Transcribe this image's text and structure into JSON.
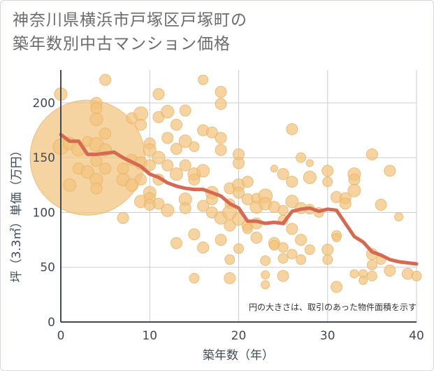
{
  "title_lines": [
    "神奈川県横浜市戸塚区戸塚町の",
    "築年数別中古マンション価格"
  ],
  "chart_data": {
    "type": "scatter",
    "xlabel": "築年数（年）",
    "ylabel": "坪（3.3㎡）単価（万円）",
    "xlim": [
      0,
      40
    ],
    "ylim": [
      0,
      230
    ],
    "xticks": [
      0,
      10,
      20,
      30,
      40
    ],
    "yticks": [
      0,
      50,
      100,
      150,
      200
    ],
    "grid": true,
    "annotation": "円の大きさは、取引のあった物件面積を示す",
    "colors": {
      "bubble": "#f3c47d",
      "bubble_stroke": "#e8b266",
      "line": "#d46a52",
      "grid": "#c9ced4"
    },
    "trend_line": [
      [
        0,
        171
      ],
      [
        1,
        165
      ],
      [
        2,
        165
      ],
      [
        3,
        153
      ],
      [
        4,
        153
      ],
      [
        5,
        154
      ],
      [
        6,
        155
      ],
      [
        7,
        150
      ],
      [
        8,
        146
      ],
      [
        9,
        142
      ],
      [
        10,
        135
      ],
      [
        11,
        132
      ],
      [
        12,
        127
      ],
      [
        13,
        124
      ],
      [
        14,
        122
      ],
      [
        15,
        121
      ],
      [
        16,
        121
      ],
      [
        17,
        118
      ],
      [
        18,
        115
      ],
      [
        19,
        108
      ],
      [
        20,
        104
      ],
      [
        21,
        92
      ],
      [
        22,
        92
      ],
      [
        23,
        90
      ],
      [
        24,
        91
      ],
      [
        25,
        90
      ],
      [
        26,
        101
      ],
      [
        27,
        103
      ],
      [
        28,
        104
      ],
      [
        29,
        101
      ],
      [
        30,
        103
      ],
      [
        31,
        102
      ],
      [
        32,
        90
      ],
      [
        33,
        78
      ],
      [
        34,
        73
      ],
      [
        35,
        64
      ],
      [
        36,
        61
      ],
      [
        37,
        57
      ],
      [
        38,
        55
      ],
      [
        39,
        54
      ],
      [
        40,
        53
      ]
    ],
    "points": [
      {
        "x": 3,
        "y": 150,
        "s": 82
      },
      {
        "x": 0,
        "y": 208,
        "s": 9
      },
      {
        "x": 0,
        "y": 160,
        "s": 11
      },
      {
        "x": 1,
        "y": 163,
        "s": 9
      },
      {
        "x": 1,
        "y": 125,
        "s": 9
      },
      {
        "x": 2,
        "y": 140,
        "s": 8
      },
      {
        "x": 2,
        "y": 158,
        "s": 10
      },
      {
        "x": 3,
        "y": 137,
        "s": 9
      },
      {
        "x": 3,
        "y": 165,
        "s": 7
      },
      {
        "x": 4,
        "y": 200,
        "s": 8
      },
      {
        "x": 4,
        "y": 195,
        "s": 8
      },
      {
        "x": 4,
        "y": 185,
        "s": 9
      },
      {
        "x": 4,
        "y": 162,
        "s": 10
      },
      {
        "x": 4,
        "y": 147,
        "s": 8
      },
      {
        "x": 4,
        "y": 130,
        "s": 9
      },
      {
        "x": 4,
        "y": 122,
        "s": 8
      },
      {
        "x": 5,
        "y": 221,
        "s": 8
      },
      {
        "x": 5,
        "y": 172,
        "s": 8
      },
      {
        "x": 5,
        "y": 157,
        "s": 9
      },
      {
        "x": 5,
        "y": 140,
        "s": 8
      },
      {
        "x": 7,
        "y": 95,
        "s": 8
      },
      {
        "x": 7,
        "y": 130,
        "s": 9
      },
      {
        "x": 7,
        "y": 140,
        "s": 8
      },
      {
        "x": 8,
        "y": 186,
        "s": 8
      },
      {
        "x": 8,
        "y": 148,
        "s": 8
      },
      {
        "x": 8,
        "y": 125,
        "s": 9
      },
      {
        "x": 9,
        "y": 190,
        "s": 10
      },
      {
        "x": 9,
        "y": 180,
        "s": 8
      },
      {
        "x": 9,
        "y": 145,
        "s": 9
      },
      {
        "x": 9,
        "y": 130,
        "s": 8
      },
      {
        "x": 9,
        "y": 110,
        "s": 9
      },
      {
        "x": 10,
        "y": 163,
        "s": 8
      },
      {
        "x": 10,
        "y": 157,
        "s": 9
      },
      {
        "x": 10,
        "y": 143,
        "s": 8
      },
      {
        "x": 10,
        "y": 118,
        "s": 9
      },
      {
        "x": 10,
        "y": 113,
        "s": 8
      },
      {
        "x": 10,
        "y": 107,
        "s": 8
      },
      {
        "x": 11,
        "y": 208,
        "s": 8
      },
      {
        "x": 11,
        "y": 187,
        "s": 8
      },
      {
        "x": 11,
        "y": 150,
        "s": 9
      },
      {
        "x": 11,
        "y": 130,
        "s": 8
      },
      {
        "x": 11,
        "y": 108,
        "s": 8
      },
      {
        "x": 12,
        "y": 192,
        "s": 9
      },
      {
        "x": 12,
        "y": 168,
        "s": 8
      },
      {
        "x": 12,
        "y": 143,
        "s": 8
      },
      {
        "x": 12,
        "y": 102,
        "s": 9
      },
      {
        "x": 13,
        "y": 180,
        "s": 8
      },
      {
        "x": 13,
        "y": 158,
        "s": 8
      },
      {
        "x": 13,
        "y": 135,
        "s": 9
      },
      {
        "x": 13,
        "y": 72,
        "s": 8
      },
      {
        "x": 14,
        "y": 193,
        "s": 8
      },
      {
        "x": 14,
        "y": 165,
        "s": 9
      },
      {
        "x": 14,
        "y": 143,
        "s": 8
      },
      {
        "x": 14,
        "y": 112,
        "s": 9
      },
      {
        "x": 14,
        "y": 104,
        "s": 8
      },
      {
        "x": 15,
        "y": 160,
        "s": 7
      },
      {
        "x": 15,
        "y": 135,
        "s": 9
      },
      {
        "x": 15,
        "y": 130,
        "s": 8
      },
      {
        "x": 15,
        "y": 80,
        "s": 8
      },
      {
        "x": 15,
        "y": 40,
        "s": 7
      },
      {
        "x": 16,
        "y": 221,
        "s": 7
      },
      {
        "x": 16,
        "y": 175,
        "s": 8
      },
      {
        "x": 16,
        "y": 138,
        "s": 9
      },
      {
        "x": 16,
        "y": 106,
        "s": 8
      },
      {
        "x": 16,
        "y": 68,
        "s": 8
      },
      {
        "x": 17,
        "y": 173,
        "s": 8
      },
      {
        "x": 17,
        "y": 118,
        "s": 9
      },
      {
        "x": 17,
        "y": 112,
        "s": 8
      },
      {
        "x": 17,
        "y": 100,
        "s": 8
      },
      {
        "x": 18,
        "y": 210,
        "s": 8
      },
      {
        "x": 18,
        "y": 199,
        "s": 8
      },
      {
        "x": 18,
        "y": 168,
        "s": 8
      },
      {
        "x": 18,
        "y": 157,
        "s": 8
      },
      {
        "x": 18,
        "y": 95,
        "s": 9
      },
      {
        "x": 18,
        "y": 75,
        "s": 8
      },
      {
        "x": 19,
        "y": 122,
        "s": 8
      },
      {
        "x": 19,
        "y": 108,
        "s": 7
      },
      {
        "x": 19,
        "y": 100,
        "s": 10
      },
      {
        "x": 19,
        "y": 88,
        "s": 8
      },
      {
        "x": 19,
        "y": 57,
        "s": 7
      },
      {
        "x": 19,
        "y": 40,
        "s": 8
      },
      {
        "x": 20,
        "y": 153,
        "s": 8
      },
      {
        "x": 20,
        "y": 145,
        "s": 8
      },
      {
        "x": 20,
        "y": 125,
        "s": 9
      },
      {
        "x": 20,
        "y": 118,
        "s": 8
      },
      {
        "x": 20,
        "y": 94,
        "s": 9
      },
      {
        "x": 20,
        "y": 67,
        "s": 7
      },
      {
        "x": 21,
        "y": 128,
        "s": 8
      },
      {
        "x": 21,
        "y": 112,
        "s": 8
      },
      {
        "x": 21,
        "y": 88,
        "s": 8
      },
      {
        "x": 21,
        "y": 85,
        "s": 7
      },
      {
        "x": 22,
        "y": 105,
        "s": 9
      },
      {
        "x": 22,
        "y": 90,
        "s": 8
      },
      {
        "x": 22,
        "y": 77,
        "s": 8
      },
      {
        "x": 22,
        "y": 113,
        "s": 7
      },
      {
        "x": 23,
        "y": 115,
        "s": 10
      },
      {
        "x": 23,
        "y": 108,
        "s": 9
      },
      {
        "x": 23,
        "y": 56,
        "s": 7
      },
      {
        "x": 23,
        "y": 43,
        "s": 6
      },
      {
        "x": 23,
        "y": 34,
        "s": 6
      },
      {
        "x": 24,
        "y": 140,
        "s": 5
      },
      {
        "x": 24,
        "y": 105,
        "s": 8
      },
      {
        "x": 24,
        "y": 72,
        "s": 8
      },
      {
        "x": 24,
        "y": 70,
        "s": 7
      },
      {
        "x": 25,
        "y": 135,
        "s": 8
      },
      {
        "x": 25,
        "y": 102,
        "s": 7
      },
      {
        "x": 25,
        "y": 93,
        "s": 7
      },
      {
        "x": 25,
        "y": 68,
        "s": 7
      },
      {
        "x": 25,
        "y": 58,
        "s": 7
      },
      {
        "x": 25,
        "y": 42,
        "s": 8
      },
      {
        "x": 26,
        "y": 176,
        "s": 8
      },
      {
        "x": 26,
        "y": 128,
        "s": 8
      },
      {
        "x": 26,
        "y": 110,
        "s": 9
      },
      {
        "x": 26,
        "y": 85,
        "s": 8
      },
      {
        "x": 26,
        "y": 62,
        "s": 7
      },
      {
        "x": 27,
        "y": 150,
        "s": 7
      },
      {
        "x": 27,
        "y": 104,
        "s": 8
      },
      {
        "x": 27,
        "y": 75,
        "s": 8
      },
      {
        "x": 27,
        "y": 57,
        "s": 7
      },
      {
        "x": 28,
        "y": 145,
        "s": 5
      },
      {
        "x": 28,
        "y": 132,
        "s": 9
      },
      {
        "x": 28,
        "y": 103,
        "s": 7
      },
      {
        "x": 28,
        "y": 66,
        "s": 7
      },
      {
        "x": 29,
        "y": 100,
        "s": 7
      },
      {
        "x": 30,
        "y": 138,
        "s": 8
      },
      {
        "x": 30,
        "y": 128,
        "s": 7
      },
      {
        "x": 30,
        "y": 66,
        "s": 8
      },
      {
        "x": 30,
        "y": 57,
        "s": 7
      },
      {
        "x": 31,
        "y": 114,
        "s": 8
      },
      {
        "x": 31,
        "y": 79,
        "s": 7
      },
      {
        "x": 31,
        "y": 77,
        "s": 6
      },
      {
        "x": 31,
        "y": 32,
        "s": 8
      },
      {
        "x": 32,
        "y": 113,
        "s": 8
      },
      {
        "x": 32,
        "y": 108,
        "s": 8
      },
      {
        "x": 33,
        "y": 135,
        "s": 9
      },
      {
        "x": 33,
        "y": 130,
        "s": 8
      },
      {
        "x": 33,
        "y": 120,
        "s": 9
      },
      {
        "x": 33,
        "y": 44,
        "s": 6
      },
      {
        "x": 34,
        "y": 44,
        "s": 6
      },
      {
        "x": 34,
        "y": 38,
        "s": 6
      },
      {
        "x": 35,
        "y": 153,
        "s": 8
      },
      {
        "x": 35,
        "y": 62,
        "s": 8
      },
      {
        "x": 35,
        "y": 52,
        "s": 7
      },
      {
        "x": 35,
        "y": 42,
        "s": 7
      },
      {
        "x": 36,
        "y": 107,
        "s": 8
      },
      {
        "x": 36,
        "y": 57,
        "s": 7
      },
      {
        "x": 37,
        "y": 138,
        "s": 8
      },
      {
        "x": 37,
        "y": 47,
        "s": 8
      },
      {
        "x": 38,
        "y": 96,
        "s": 6
      },
      {
        "x": 39,
        "y": 44,
        "s": 8
      },
      {
        "x": 40,
        "y": 42,
        "s": 7
      }
    ]
  }
}
